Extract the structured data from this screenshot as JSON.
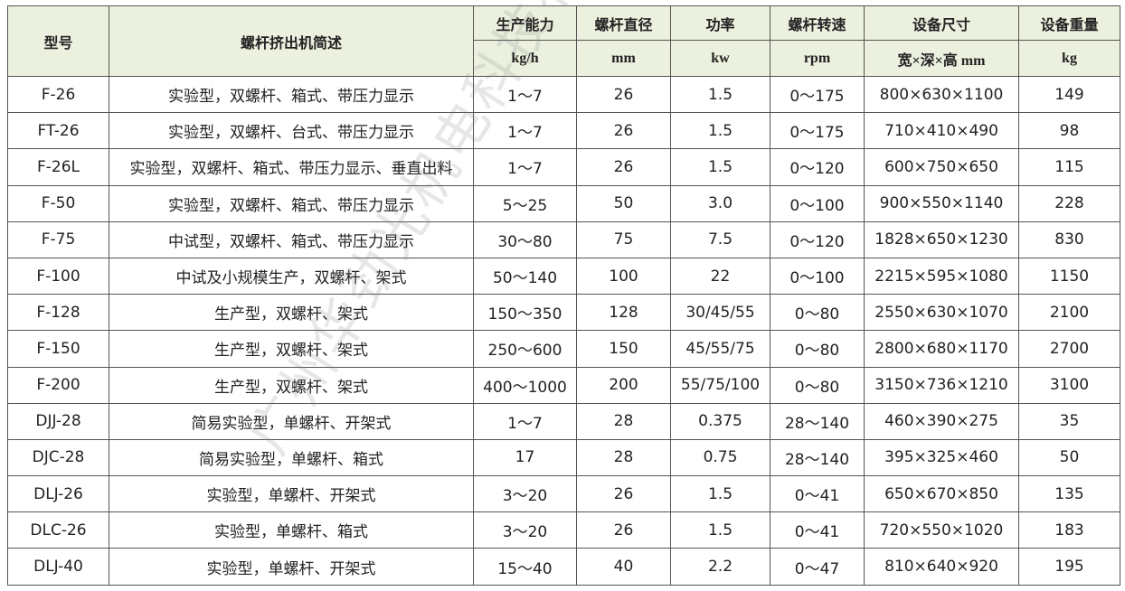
{
  "headers": {
    "model": "型号",
    "desc": "螺杆挤出机简述",
    "capacity": "生产能力",
    "diameter": "螺杆直径",
    "power": "功率",
    "speed": "螺杆转速",
    "size": "设备尺寸",
    "weight": "设备重量"
  },
  "units": {
    "capacity": "kg/h",
    "diameter": "mm",
    "power": "kw",
    "speed": "rpm",
    "size": "宽×深×高 mm",
    "weight": "kg"
  },
  "rows": [
    [
      "F-26",
      "实验型，双螺杆、箱式、带压力显示",
      "1～7",
      "26",
      "1.5",
      "0～175",
      "800×630×1100",
      "149"
    ],
    [
      "FT-26",
      "实验型，双螺杆、台式、带压力显示",
      "1～7",
      "26",
      "1.5",
      "0～175",
      "710×410×490",
      "98"
    ],
    [
      "F-26L",
      "实验型，双螺杆、箱式、带压力显示、垂直出料",
      "1～7",
      "26",
      "1.5",
      "0～120",
      "600×750×650",
      "115"
    ],
    [
      "F-50",
      "实验型，双螺杆、箱式、带压力显示",
      "5～25",
      "50",
      "3.0",
      "0～100",
      "900×550×1140",
      "228"
    ],
    [
      "F-75",
      "中试型，双螺杆、箱式、带压力显示",
      "30～80",
      "75",
      "7.5",
      "0～120",
      "1828×650×1230",
      "830"
    ],
    [
      "F-100",
      "中试及小规模生产，双螺杆、架式",
      "50～140",
      "100",
      "22",
      "0～100",
      "2215×595×1080",
      "1150"
    ],
    [
      "F-128",
      "生产型，双螺杆、架式",
      "150～350",
      "128",
      "30/45/55",
      "0～80",
      "2550×630×1070",
      "2100"
    ],
    [
      "F-150",
      "生产型，双螺杆、架式",
      "250～600",
      "150",
      "45/55/75",
      "0～80",
      "2800×680×1170",
      "2700"
    ],
    [
      "F-200",
      "生产型，双螺杆、架式",
      "400～1000",
      "200",
      "55/75/100",
      "0～80",
      "3150×736×1210",
      "3100"
    ],
    [
      "DJJ-28",
      "简易实验型，单螺杆、开架式",
      "1～7",
      "28",
      "0.375",
      "28～140",
      "460×390×275",
      "35"
    ],
    [
      "DJC-28",
      "简易实验型，单螺杆、箱式",
      "17",
      "28",
      "0.75",
      "28～140",
      "395×325×460",
      "50"
    ],
    [
      "DLJ-26",
      "实验型，单螺杆、开架式",
      "3～20",
      "26",
      "1.5",
      "0～41",
      "650×670×850",
      "135"
    ],
    [
      "DLC-26",
      "实验型，单螺杆、箱式",
      "3～20",
      "26",
      "1.5",
      "0～41",
      "720×550×1020",
      "183"
    ],
    [
      "DLJ-40",
      "实验型，单螺杆、开架式",
      "15～40",
      "40",
      "2.2",
      "0～47",
      "810×640×920",
      "195"
    ]
  ],
  "watermark": "广州华劲光机电科技有限公司",
  "colors": {
    "header_bg": "#ebf1de",
    "border": "#555555"
  }
}
